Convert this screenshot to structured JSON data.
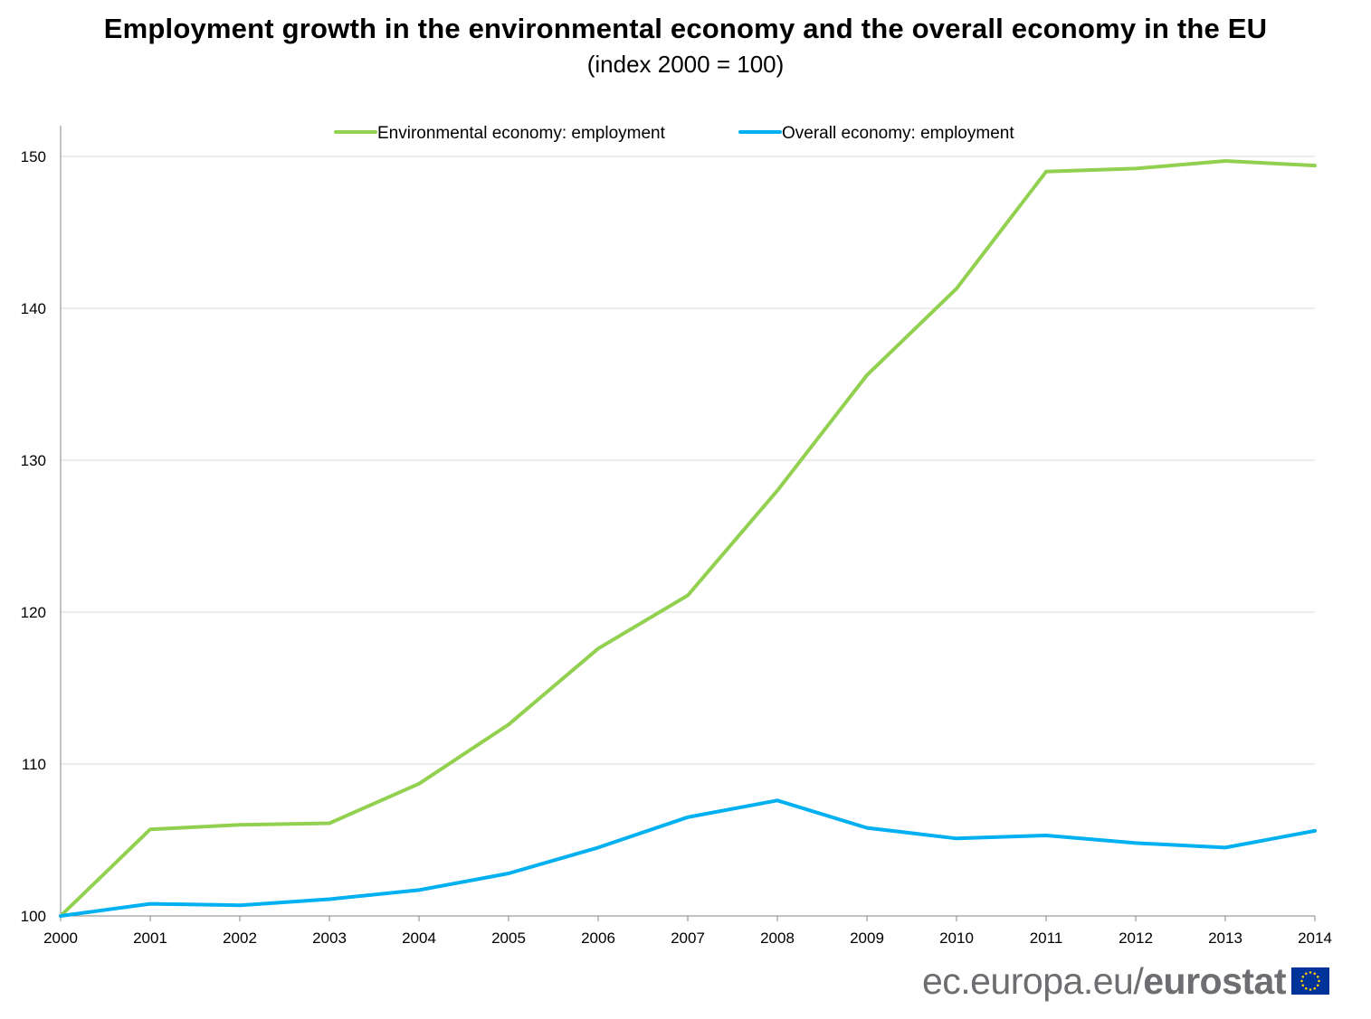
{
  "title": "Employment growth in the environmental economy and the overall economy in the EU",
  "subtitle": "(index 2000 = 100)",
  "footer": {
    "site": "ec.europa.eu/",
    "brand": "eurostat"
  },
  "colors": {
    "environmental": "#92d050",
    "overall": "#00b0f0",
    "grid": "#d9d9d9",
    "axis": "#868686"
  },
  "chart_data": {
    "type": "line",
    "title": "Employment growth in the environmental economy and the overall economy in the EU",
    "subtitle": "(index 2000 = 100)",
    "xlabel": "",
    "ylabel": "",
    "x": [
      "2000",
      "2001",
      "2002",
      "2003",
      "2004",
      "2005",
      "2006",
      "2007",
      "2008",
      "2009",
      "2010",
      "2011",
      "2012",
      "2013",
      "2014"
    ],
    "ylim": [
      100,
      150
    ],
    "yticks": [
      100,
      110,
      120,
      130,
      140,
      150
    ],
    "grid": true,
    "legend_position": "top-center",
    "series": [
      {
        "name": "Environmental economy: employment",
        "color": "#92d050",
        "values": [
          100.0,
          105.7,
          106.0,
          106.1,
          108.7,
          112.6,
          117.6,
          121.1,
          128.0,
          135.6,
          141.3,
          149.0,
          149.2,
          149.7,
          149.4
        ]
      },
      {
        "name": "Overall economy: employment",
        "color": "#00b0f0",
        "values": [
          100.0,
          100.8,
          100.7,
          101.1,
          101.7,
          102.8,
          104.5,
          106.5,
          107.6,
          105.8,
          105.1,
          105.3,
          104.8,
          104.5,
          105.6
        ]
      }
    ]
  }
}
